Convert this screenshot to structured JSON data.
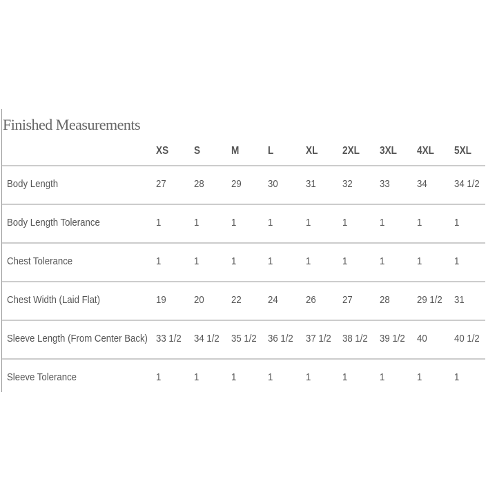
{
  "title": "Finished Measurements",
  "sizes": [
    "XS",
    "S",
    "M",
    "L",
    "XL",
    "2XL",
    "3XL",
    "4XL",
    "5XL"
  ],
  "rows": [
    {
      "label": "Body Length",
      "values": [
        "27",
        "28",
        "29",
        "30",
        "31",
        "32",
        "33",
        "34",
        "34 1/2"
      ]
    },
    {
      "label": "Body Length Tolerance",
      "values": [
        "1",
        "1",
        "1",
        "1",
        "1",
        "1",
        "1",
        "1",
        "1"
      ]
    },
    {
      "label": "Chest Tolerance",
      "values": [
        "1",
        "1",
        "1",
        "1",
        "1",
        "1",
        "1",
        "1",
        "1"
      ]
    },
    {
      "label": "Chest Width (Laid Flat)",
      "values": [
        "19",
        "20",
        "22",
        "24",
        "26",
        "27",
        "28",
        "29 1/2",
        "31"
      ]
    },
    {
      "label": "Sleeve Length (From Center Back)",
      "values": [
        "33 1/2",
        "34 1/2",
        "35 1/2",
        "36 1/2",
        "37 1/2",
        "38 1/2",
        "39 1/2",
        "40",
        "40 1/2"
      ]
    },
    {
      "label": "Sleeve Tolerance",
      "values": [
        "1",
        "1",
        "1",
        "1",
        "1",
        "1",
        "1",
        "1",
        "1"
      ]
    }
  ]
}
